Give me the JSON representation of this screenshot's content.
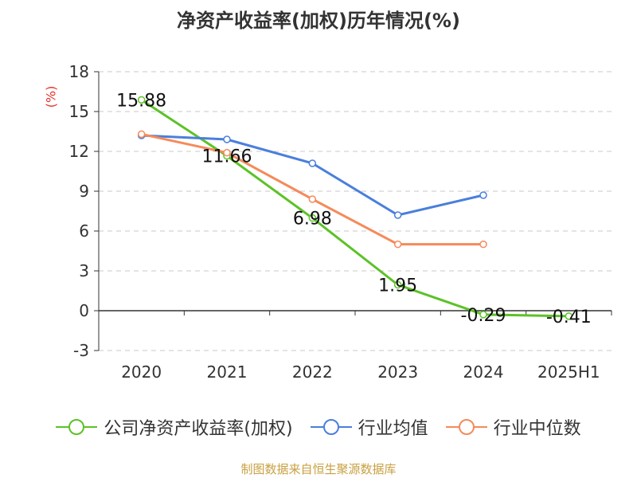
{
  "title": "净资产收益率(加权)历年情况(%)",
  "source_text": "制图数据来自恒生聚源数据库",
  "chart_data": {
    "type": "line",
    "title": "净资产收益率(加权)历年情况(%)",
    "ylabel": "(%)",
    "xlabel": "",
    "categories": [
      "2020",
      "2021",
      "2022",
      "2023",
      "2024",
      "2025H1"
    ],
    "ylim": [
      -3,
      18
    ],
    "yticks": [
      -3,
      0,
      3,
      6,
      9,
      12,
      15,
      18
    ],
    "grid": true,
    "legend_position": "bottom",
    "series": [
      {
        "name": "公司净资产收益率(加权)",
        "color": "#5cc226",
        "values": [
          15.88,
          11.66,
          6.98,
          1.95,
          -0.29,
          -0.41
        ],
        "labels": [
          "15.88",
          "11.66",
          "6.98",
          "1.95",
          "-0.29",
          "-0.41"
        ]
      },
      {
        "name": "行业均值",
        "color": "#4a7fdc",
        "values": [
          13.2,
          12.9,
          11.1,
          7.2,
          8.7,
          null
        ]
      },
      {
        "name": "行业中位数",
        "color": "#f58a5a",
        "values": [
          13.3,
          11.9,
          8.4,
          5.0,
          5.0,
          null
        ]
      }
    ]
  }
}
